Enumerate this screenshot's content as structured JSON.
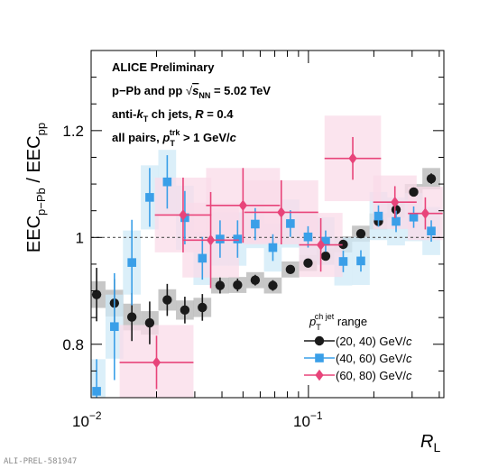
{
  "chart_data": {
    "type": "scatter",
    "x_scale": "log",
    "xlim": [
      0.01,
      0.42
    ],
    "ylim": [
      0.7,
      1.35
    ],
    "xlabel": "R_L",
    "ylabel": "EEC_{p–Pb} / EEC_{pp}",
    "x_tick_labels": [
      "10^-2",
      "10^-1"
    ],
    "y_ticks": [
      0.8,
      1.0,
      1.2
    ],
    "y_tick_labels": [
      "0.8",
      "1",
      "1.2"
    ],
    "reference_line": 1.0,
    "annotation_lines": [
      "ALICE Preliminary",
      "p–Pb and pp √s_NN = 5.02 TeV",
      "anti-k_T ch jets, R = 0.4",
      "all pairs, p_T^trk > 1 GeV/c"
    ],
    "legend_title": "p_T^ch jet range",
    "legend_position": "bottom-right",
    "series": [
      {
        "name": "(20, 40) GeV/c",
        "color": "#1a1a1a",
        "band_color": "#b4b4b4",
        "marker": "circle",
        "points": [
          {
            "x": 0.0106,
            "y": 0.893,
            "stat": 0.05,
            "syst": 0.025
          },
          {
            "x": 0.0128,
            "y": 0.877,
            "stat": 0.045,
            "syst": 0.025
          },
          {
            "x": 0.0154,
            "y": 0.851,
            "stat": 0.045,
            "syst": 0.025
          },
          {
            "x": 0.0186,
            "y": 0.84,
            "stat": 0.04,
            "syst": 0.022
          },
          {
            "x": 0.0224,
            "y": 0.883,
            "stat": 0.03,
            "syst": 0.02
          },
          {
            "x": 0.027,
            "y": 0.864,
            "stat": 0.025,
            "syst": 0.018
          },
          {
            "x": 0.0325,
            "y": 0.869,
            "stat": 0.025,
            "syst": 0.018
          },
          {
            "x": 0.0392,
            "y": 0.91,
            "stat": 0.015,
            "syst": 0.015
          },
          {
            "x": 0.0472,
            "y": 0.911,
            "stat": 0.012,
            "syst": 0.015
          },
          {
            "x": 0.0569,
            "y": 0.92,
            "stat": 0.01,
            "syst": 0.015
          },
          {
            "x": 0.0686,
            "y": 0.91,
            "stat": 0.01,
            "syst": 0.015
          },
          {
            "x": 0.0826,
            "y": 0.94,
            "stat": 0.008,
            "syst": 0.015
          },
          {
            "x": 0.0996,
            "y": 0.952,
            "stat": 0.008,
            "syst": 0.015
          },
          {
            "x": 0.12,
            "y": 0.965,
            "stat": 0.008,
            "syst": 0.015
          },
          {
            "x": 0.1446,
            "y": 0.987,
            "stat": 0.008,
            "syst": 0.015
          },
          {
            "x": 0.1743,
            "y": 1.007,
            "stat": 0.008,
            "syst": 0.015
          },
          {
            "x": 0.21,
            "y": 1.03,
            "stat": 0.008,
            "syst": 0.015
          },
          {
            "x": 0.2531,
            "y": 1.052,
            "stat": 0.008,
            "syst": 0.015
          },
          {
            "x": 0.305,
            "y": 1.085,
            "stat": 0.008,
            "syst": 0.015
          },
          {
            "x": 0.3675,
            "y": 1.11,
            "stat": 0.01,
            "syst": 0.02
          }
        ]
      },
      {
        "name": "(40, 60) GeV/c",
        "color": "#3a9fe8",
        "band_color": "#cfe9f7",
        "marker": "square",
        "points": [
          {
            "x": 0.0106,
            "y": 0.712,
            "stat": 0.06,
            "syst": 0.06
          },
          {
            "x": 0.0128,
            "y": 0.833,
            "stat": 0.1,
            "syst": 0.06
          },
          {
            "x": 0.0154,
            "y": 0.953,
            "stat": 0.08,
            "syst": 0.06
          },
          {
            "x": 0.0186,
            "y": 1.075,
            "stat": 0.055,
            "syst": 0.06
          },
          {
            "x": 0.0224,
            "y": 1.104,
            "stat": 0.05,
            "syst": 0.06
          },
          {
            "x": 0.027,
            "y": 1.037,
            "stat": 0.05,
            "syst": 0.06
          },
          {
            "x": 0.0325,
            "y": 0.961,
            "stat": 0.04,
            "syst": 0.05
          },
          {
            "x": 0.0392,
            "y": 0.997,
            "stat": 0.035,
            "syst": 0.05
          },
          {
            "x": 0.0472,
            "y": 0.997,
            "stat": 0.035,
            "syst": 0.05
          },
          {
            "x": 0.0569,
            "y": 1.025,
            "stat": 0.03,
            "syst": 0.045
          },
          {
            "x": 0.0686,
            "y": 0.981,
            "stat": 0.025,
            "syst": 0.045
          },
          {
            "x": 0.0826,
            "y": 1.026,
            "stat": 0.025,
            "syst": 0.045
          },
          {
            "x": 0.0996,
            "y": 1.001,
            "stat": 0.02,
            "syst": 0.045
          },
          {
            "x": 0.12,
            "y": 0.993,
            "stat": 0.02,
            "syst": 0.045
          },
          {
            "x": 0.1446,
            "y": 0.955,
            "stat": 0.02,
            "syst": 0.045
          },
          {
            "x": 0.1743,
            "y": 0.956,
            "stat": 0.02,
            "syst": 0.045
          },
          {
            "x": 0.21,
            "y": 1.04,
            "stat": 0.02,
            "syst": 0.045
          },
          {
            "x": 0.2531,
            "y": 1.03,
            "stat": 0.02,
            "syst": 0.045
          },
          {
            "x": 0.305,
            "y": 1.038,
            "stat": 0.02,
            "syst": 0.045
          },
          {
            "x": 0.3675,
            "y": 1.012,
            "stat": 0.02,
            "syst": 0.045
          }
        ]
      },
      {
        "name": "(60, 80) GeV/c",
        "color": "#e8447a",
        "band_color": "#f9dbe8",
        "marker": "diamond",
        "points": [
          {
            "x": 0.02,
            "y": 0.766,
            "stat": 0.05,
            "syst": 0.07,
            "xerr": 0.17
          },
          {
            "x": 0.0265,
            "y": 1.042,
            "stat": 0.07,
            "syst": 0.07,
            "xerr": 0.13
          },
          {
            "x": 0.0355,
            "y": 0.995,
            "stat": 0.09,
            "syst": 0.07,
            "xerr": 0.13
          },
          {
            "x": 0.05,
            "y": 1.06,
            "stat": 0.07,
            "syst": 0.07,
            "xerr": 0.17
          },
          {
            "x": 0.075,
            "y": 1.047,
            "stat": 0.06,
            "syst": 0.06,
            "xerr": 0.17
          },
          {
            "x": 0.114,
            "y": 0.986,
            "stat": 0.05,
            "syst": 0.06,
            "xerr": 0.1
          },
          {
            "x": 0.16,
            "y": 1.148,
            "stat": 0.04,
            "syst": 0.08,
            "xerr": 0.13
          },
          {
            "x": 0.25,
            "y": 1.066,
            "stat": 0.03,
            "syst": 0.05,
            "xerr": 0.1
          },
          {
            "x": 0.345,
            "y": 1.045,
            "stat": 0.03,
            "syst": 0.05,
            "xerr": 0.08
          }
        ]
      }
    ]
  },
  "footer": {
    "credit": "ALI-PREL-581947"
  }
}
